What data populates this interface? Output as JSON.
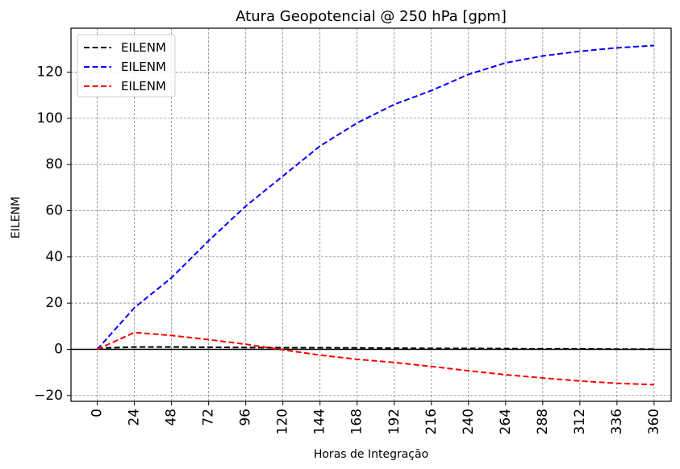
{
  "chart_data": {
    "type": "line",
    "title": "Atura Geopotencial @ 250 hPa [gpm]",
    "xlabel": "Horas de Integração",
    "ylabel": "EILENM",
    "x": [
      0,
      24,
      48,
      72,
      96,
      120,
      144,
      168,
      192,
      216,
      240,
      264,
      288,
      312,
      336,
      360
    ],
    "xticks": [
      "0",
      "24",
      "48",
      "72",
      "96",
      "120",
      "144",
      "168",
      "192",
      "216",
      "240",
      "264",
      "288",
      "312",
      "336",
      "360"
    ],
    "yticks": [
      "−20",
      "0",
      "20",
      "40",
      "60",
      "80",
      "100",
      "120"
    ],
    "ytick_values": [
      -20,
      0,
      20,
      40,
      60,
      80,
      100,
      120
    ],
    "xlim": [
      -17,
      371
    ],
    "ylim": [
      -22.5,
      139
    ],
    "grid": true,
    "legend_position": "top-left",
    "series": [
      {
        "name": "EILENM",
        "color": "#000000",
        "values": [
          0.5,
          1.0,
          1.0,
          0.9,
          0.8,
          0.7,
          0.7,
          0.6,
          0.5,
          0.4,
          0.4,
          0.3,
          0.2,
          0.2,
          0.1,
          0.1
        ]
      },
      {
        "name": "EILENM",
        "color": "#0000ff",
        "values": [
          0,
          18,
          31,
          47,
          62,
          75,
          88,
          98,
          106,
          112,
          119,
          124,
          127,
          129,
          130.5,
          131.5
        ]
      },
      {
        "name": "EILENM",
        "color": "#ff0000",
        "values": [
          0,
          7.3,
          6,
          4.2,
          2.2,
          -0.2,
          -2.5,
          -4.3,
          -5.7,
          -7.4,
          -9.3,
          -11,
          -12.4,
          -13.7,
          -14.7,
          -15.3
        ]
      }
    ],
    "reference_line": {
      "y": 0,
      "color": "#000000"
    }
  }
}
